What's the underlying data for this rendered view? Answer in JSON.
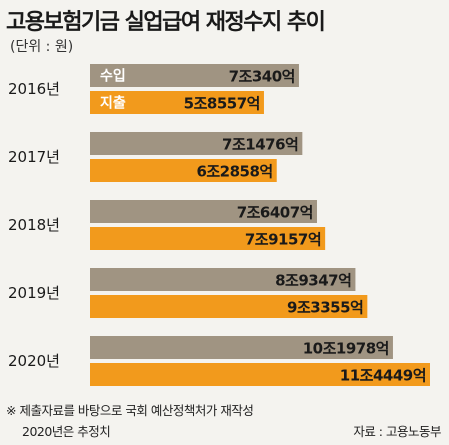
{
  "title": "고용보험기금 실업급여 재정수지 추이",
  "unit": "(단위 : 원)",
  "footnote": "※ 제출자료를 바탕으로 국회 예산정책처가 재작성",
  "footnote2": "2020년은 추정치",
  "source": "자료 : 고용노동부",
  "colors": {
    "income": "#a09482",
    "expense": "#f29a1c"
  },
  "chart_data": {
    "type": "bar",
    "orientation": "horizontal",
    "categories": [
      "2016년",
      "2017년",
      "2018년",
      "2019년",
      "2020년"
    ],
    "series": [
      {
        "name": "수입",
        "values": [
          70340,
          71476,
          76407,
          89347,
          101978
        ],
        "labels": [
          "7조340억",
          "7조1476억",
          "7조6407억",
          "8조9347억",
          "10조1978억"
        ]
      },
      {
        "name": "지출",
        "values": [
          58557,
          62858,
          79157,
          93355,
          114449
        ],
        "labels": [
          "5조8557억",
          "6조2858억",
          "7조9157억",
          "9조3355억",
          "11조4449억"
        ]
      }
    ],
    "value_unit": "억 원",
    "legend": "inside-first-group"
  }
}
